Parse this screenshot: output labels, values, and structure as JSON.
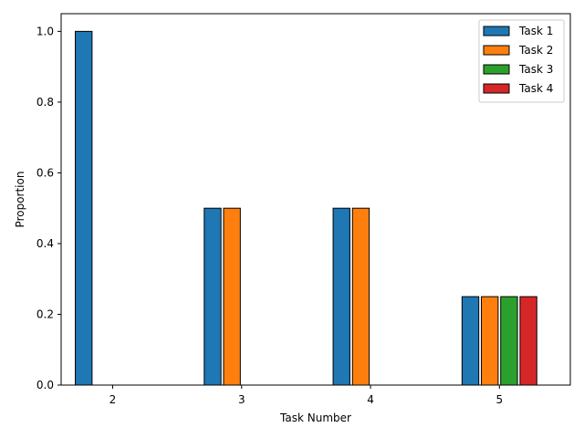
{
  "chart_data": {
    "type": "bar",
    "title": "",
    "xlabel": "Task Number",
    "ylabel": "Proportion",
    "categories": [
      "2",
      "3",
      "4",
      "5"
    ],
    "series": [
      {
        "name": "Task 1",
        "color": "#1f77b4",
        "values": [
          1.0,
          0.5,
          0.5,
          0.25
        ]
      },
      {
        "name": "Task 2",
        "color": "#ff7f0e",
        "values": [
          0.0,
          0.5,
          0.5,
          0.25
        ]
      },
      {
        "name": "Task 3",
        "color": "#2ca02c",
        "values": [
          0.0,
          0.0,
          0.0,
          0.25
        ]
      },
      {
        "name": "Task 4",
        "color": "#d62728",
        "values": [
          0.0,
          0.0,
          0.0,
          0.25
        ]
      }
    ],
    "yticks": [
      "0.0",
      "0.2",
      "0.4",
      "0.6",
      "0.8",
      "1.0"
    ],
    "ylim": [
      0,
      1.05
    ],
    "grid": false,
    "legend_position": "top-right"
  }
}
